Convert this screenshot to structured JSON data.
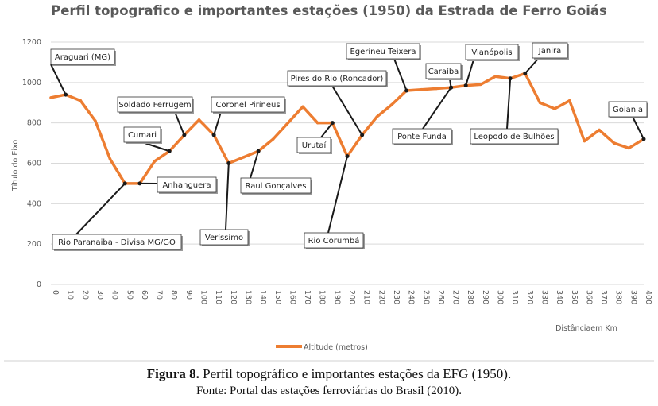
{
  "chart_data": {
    "type": "line",
    "title": "Perfil topografico  e importantes  estações (1950) da Estrada de Ferro Goiás",
    "xlabel": "Distânciaem Km",
    "ylabel": "Título do Eixo",
    "xlim": [
      0,
      400
    ],
    "ylim": [
      0,
      1200
    ],
    "x_ticks": [
      0,
      10,
      20,
      30,
      40,
      50,
      60,
      70,
      80,
      90,
      100,
      110,
      120,
      130,
      140,
      150,
      160,
      170,
      180,
      190,
      200,
      210,
      220,
      230,
      240,
      250,
      260,
      270,
      280,
      290,
      300,
      310,
      320,
      330,
      340,
      350,
      360,
      370,
      380,
      390,
      400
    ],
    "y_ticks": [
      0,
      200,
      400,
      600,
      800,
      1000,
      1200
    ],
    "series": [
      {
        "name": "Altitude (metros)",
        "color": "#ed7d31",
        "x": [
          0,
          10,
          20,
          30,
          40,
          50,
          60,
          70,
          80,
          90,
          100,
          110,
          120,
          130,
          140,
          150,
          160,
          170,
          180,
          190,
          200,
          210,
          220,
          230,
          240,
          250,
          260,
          270,
          280,
          290,
          300,
          310,
          320,
          330,
          340,
          350,
          360,
          370,
          380,
          390,
          400
        ],
        "y": [
          925,
          940,
          910,
          810,
          620,
          500,
          500,
          610,
          660,
          740,
          815,
          740,
          600,
          630,
          660,
          720,
          800,
          880,
          800,
          800,
          635,
          740,
          830,
          890,
          960,
          965,
          970,
          975,
          985,
          990,
          1030,
          1020,
          1045,
          900,
          870,
          910,
          710,
          765,
          700,
          675,
          720
        ]
      }
    ],
    "legend": {
      "label": "Altitude (metros)",
      "position": "bottom"
    },
    "stations": [
      {
        "label": "Araguari (MG)",
        "x": 10,
        "y": 940
      },
      {
        "label": "Cumari",
        "x": 80,
        "y": 660
      },
      {
        "label": "Soldado Ferrugem",
        "x": 90,
        "y": 740
      },
      {
        "label": "Coronel Piríneus",
        "x": 110,
        "y": 740
      },
      {
        "label": "Anhanguera",
        "x": 60,
        "y": 500
      },
      {
        "label": "Rio Paranaiba - Divisa MG/GO",
        "x": 50,
        "y": 500
      },
      {
        "label": "Veríssimo",
        "x": 120,
        "y": 600
      },
      {
        "label": "Raul Gonçalves",
        "x": 140,
        "y": 660
      },
      {
        "label": "Urutaí",
        "x": 190,
        "y": 800
      },
      {
        "label": "Pires do Rio (Roncador)",
        "x": 210,
        "y": 740
      },
      {
        "label": "Rio Corumbá",
        "x": 200,
        "y": 635
      },
      {
        "label": "Egerineu Teixera",
        "x": 240,
        "y": 960
      },
      {
        "label": "Caraíba",
        "x": 270,
        "y": 975
      },
      {
        "label": "Ponte Funda",
        "x": 270,
        "y": 975
      },
      {
        "label": "Vianópolis",
        "x": 280,
        "y": 985
      },
      {
        "label": "Janira",
        "x": 320,
        "y": 1045
      },
      {
        "label": "Leopodo de Bulhões",
        "x": 310,
        "y": 1020
      },
      {
        "label": "Goiania",
        "x": 400,
        "y": 720
      }
    ]
  },
  "caption": {
    "figure_label": "Figura 8.",
    "figure_text": " Perfil topográfico e importantes estações da EFG (1950).",
    "source": "Fonte: Portal das estações ferroviárias do Brasil (2010)."
  }
}
